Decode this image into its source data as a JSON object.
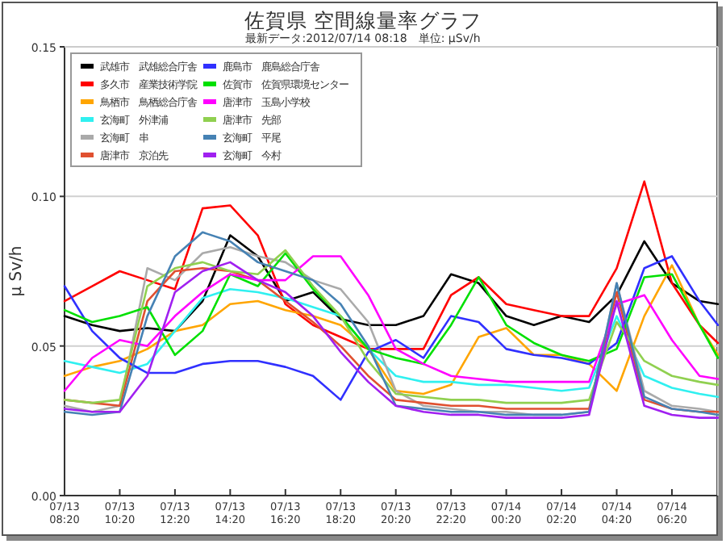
{
  "chart_data": {
    "type": "line",
    "title": "佐賀県 空間線量率グラフ",
    "subtitle": "最新データ:2012/07/14 08:18　単位: μSv/h",
    "ylabel": "μ Sv/h",
    "x": [
      "2012-07-13T08:20",
      "2012-07-13T09:20",
      "2012-07-13T10:20",
      "2012-07-13T11:20",
      "2012-07-13T12:20",
      "2012-07-13T13:20",
      "2012-07-13T14:20",
      "2012-07-13T15:20",
      "2012-07-13T16:20",
      "2012-07-13T17:20",
      "2012-07-13T18:20",
      "2012-07-13T19:20",
      "2012-07-13T20:20",
      "2012-07-13T21:20",
      "2012-07-13T22:20",
      "2012-07-13T23:20",
      "2012-07-14T00:20",
      "2012-07-14T01:20",
      "2012-07-14T02:20",
      "2012-07-14T03:20",
      "2012-07-14T04:20",
      "2012-07-14T05:20",
      "2012-07-14T06:20",
      "2012-07-14T07:20",
      "2012-07-14T08:00"
    ],
    "xlim": [
      "2012-07-13T08:20",
      "2012-07-14T08:00"
    ],
    "xticks": [
      {
        "value": "2012-07-13T08:20",
        "label": "07/13 08:20"
      },
      {
        "value": "2012-07-13T10:20",
        "label": "07/13 10:20"
      },
      {
        "value": "2012-07-13T12:20",
        "label": "07/13 12:20"
      },
      {
        "value": "2012-07-13T14:20",
        "label": "07/13 14:20"
      },
      {
        "value": "2012-07-13T16:20",
        "label": "07/13 16:20"
      },
      {
        "value": "2012-07-13T18:20",
        "label": "07/13 18:20"
      },
      {
        "value": "2012-07-13T20:20",
        "label": "07/13 20:20"
      },
      {
        "value": "2012-07-13T22:20",
        "label": "07/13 22:20"
      },
      {
        "value": "2012-07-14T00:20",
        "label": "07/14 00:20"
      },
      {
        "value": "2012-07-14T02:20",
        "label": "07/14 02:20"
      },
      {
        "value": "2012-07-14T04:20",
        "label": "07/14 04:20"
      },
      {
        "value": "2012-07-14T06:20",
        "label": "07/14 06:20"
      }
    ],
    "ylim": [
      0,
      0.15
    ],
    "yticks": [
      {
        "value": 0,
        "label": "0.00"
      },
      0.05,
      {
        "value": 0.1,
        "label": "0.10"
      },
      0.15
    ],
    "grid": "y",
    "legend": "top left",
    "line_style": "solid",
    "marker": "none",
    "series": [
      {
        "name": "武雄市　武雄総合庁舎",
        "color": "#000000",
        "values": [
          0.06,
          0.057,
          0.055,
          0.056,
          0.055,
          0.065,
          0.087,
          0.08,
          0.065,
          0.068,
          0.059,
          0.057,
          0.057,
          0.06,
          0.074,
          0.071,
          0.06,
          0.057,
          0.06,
          0.058,
          0.067,
          0.085,
          0.071,
          0.065,
          0.064
        ]
      },
      {
        "name": "多久市　産業技術学院",
        "color": "#ff0000",
        "values": [
          0.065,
          0.07,
          0.075,
          0.072,
          0.069,
          0.096,
          0.097,
          0.087,
          0.064,
          0.057,
          0.053,
          0.049,
          0.049,
          0.049,
          0.067,
          0.073,
          0.064,
          0.062,
          0.06,
          0.06,
          0.076,
          0.105,
          0.071,
          0.057,
          0.051
        ]
      },
      {
        "name": "鳥栖市　鳥栖総合庁舎",
        "color": "#ffa500",
        "values": [
          0.04,
          0.043,
          0.045,
          0.049,
          0.055,
          0.057,
          0.064,
          0.065,
          0.062,
          0.06,
          0.057,
          0.049,
          0.035,
          0.034,
          0.037,
          0.053,
          0.056,
          0.047,
          0.047,
          0.044,
          0.035,
          0.06,
          0.077,
          0.057,
          0.047
        ]
      },
      {
        "name": "玄海町　外津浦",
        "color": "#30f0f0",
        "values": [
          0.045,
          0.043,
          0.041,
          0.044,
          0.055,
          0.066,
          0.069,
          0.068,
          0.066,
          0.063,
          0.06,
          0.049,
          0.04,
          0.038,
          0.038,
          0.037,
          0.037,
          0.036,
          0.035,
          0.036,
          0.06,
          0.04,
          0.036,
          0.034,
          0.033
        ]
      },
      {
        "name": "玄海町　串",
        "color": "#aaaaaa",
        "values": [
          0.03,
          0.028,
          0.03,
          0.076,
          0.072,
          0.081,
          0.083,
          0.08,
          0.078,
          0.072,
          0.069,
          0.058,
          0.035,
          0.03,
          0.029,
          0.028,
          0.028,
          0.027,
          0.027,
          0.028,
          0.071,
          0.035,
          0.03,
          0.029,
          0.028
        ]
      },
      {
        "name": "唐津市　京泊先",
        "color": "#e05030",
        "values": [
          0.032,
          0.031,
          0.03,
          0.065,
          0.075,
          0.076,
          0.075,
          0.072,
          0.065,
          0.058,
          0.05,
          0.04,
          0.032,
          0.031,
          0.03,
          0.03,
          0.029,
          0.029,
          0.029,
          0.029,
          0.068,
          0.032,
          0.029,
          0.028,
          0.028
        ]
      },
      {
        "name": "鹿島市　鹿島総合庁舎",
        "color": "#3030ff",
        "values": [
          0.07,
          0.055,
          0.046,
          0.041,
          0.041,
          0.044,
          0.045,
          0.045,
          0.043,
          0.04,
          0.032,
          0.048,
          0.052,
          0.046,
          0.06,
          0.058,
          0.049,
          0.047,
          0.046,
          0.044,
          0.051,
          0.076,
          0.08,
          0.065,
          0.057
        ]
      },
      {
        "name": "佐賀市　佐賀県環境センター",
        "color": "#00e000",
        "values": [
          0.062,
          0.058,
          0.06,
          0.063,
          0.047,
          0.055,
          0.074,
          0.07,
          0.081,
          0.069,
          0.06,
          0.049,
          0.046,
          0.044,
          0.057,
          0.073,
          0.057,
          0.051,
          0.047,
          0.045,
          0.049,
          0.073,
          0.074,
          0.057,
          0.046
        ]
      },
      {
        "name": "唐津市　玉島小学校",
        "color": "#ff00ff",
        "values": [
          0.035,
          0.046,
          0.052,
          0.05,
          0.06,
          0.068,
          0.074,
          0.072,
          0.072,
          0.08,
          0.08,
          0.067,
          0.049,
          0.044,
          0.04,
          0.039,
          0.038,
          0.038,
          0.038,
          0.038,
          0.064,
          0.067,
          0.052,
          0.04,
          0.039
        ]
      },
      {
        "name": "唐津市　先部",
        "color": "#90d050",
        "values": [
          0.032,
          0.031,
          0.032,
          0.07,
          0.076,
          0.078,
          0.075,
          0.074,
          0.082,
          0.07,
          0.06,
          0.045,
          0.034,
          0.033,
          0.032,
          0.032,
          0.031,
          0.031,
          0.031,
          0.032,
          0.058,
          0.045,
          0.04,
          0.038,
          0.037
        ]
      },
      {
        "name": "玄海町　平尾",
        "color": "#4682b4",
        "values": [
          0.028,
          0.027,
          0.028,
          0.06,
          0.08,
          0.088,
          0.085,
          0.078,
          0.075,
          0.072,
          0.064,
          0.05,
          0.03,
          0.029,
          0.028,
          0.028,
          0.027,
          0.027,
          0.027,
          0.028,
          0.071,
          0.033,
          0.029,
          0.028,
          0.027
        ]
      },
      {
        "name": "玄海町　今村",
        "color": "#a020f0",
        "values": [
          0.029,
          0.028,
          0.028,
          0.04,
          0.068,
          0.075,
          0.078,
          0.072,
          0.068,
          0.06,
          0.048,
          0.038,
          0.03,
          0.028,
          0.027,
          0.027,
          0.026,
          0.026,
          0.026,
          0.027,
          0.065,
          0.03,
          0.027,
          0.026,
          0.026
        ]
      }
    ]
  }
}
